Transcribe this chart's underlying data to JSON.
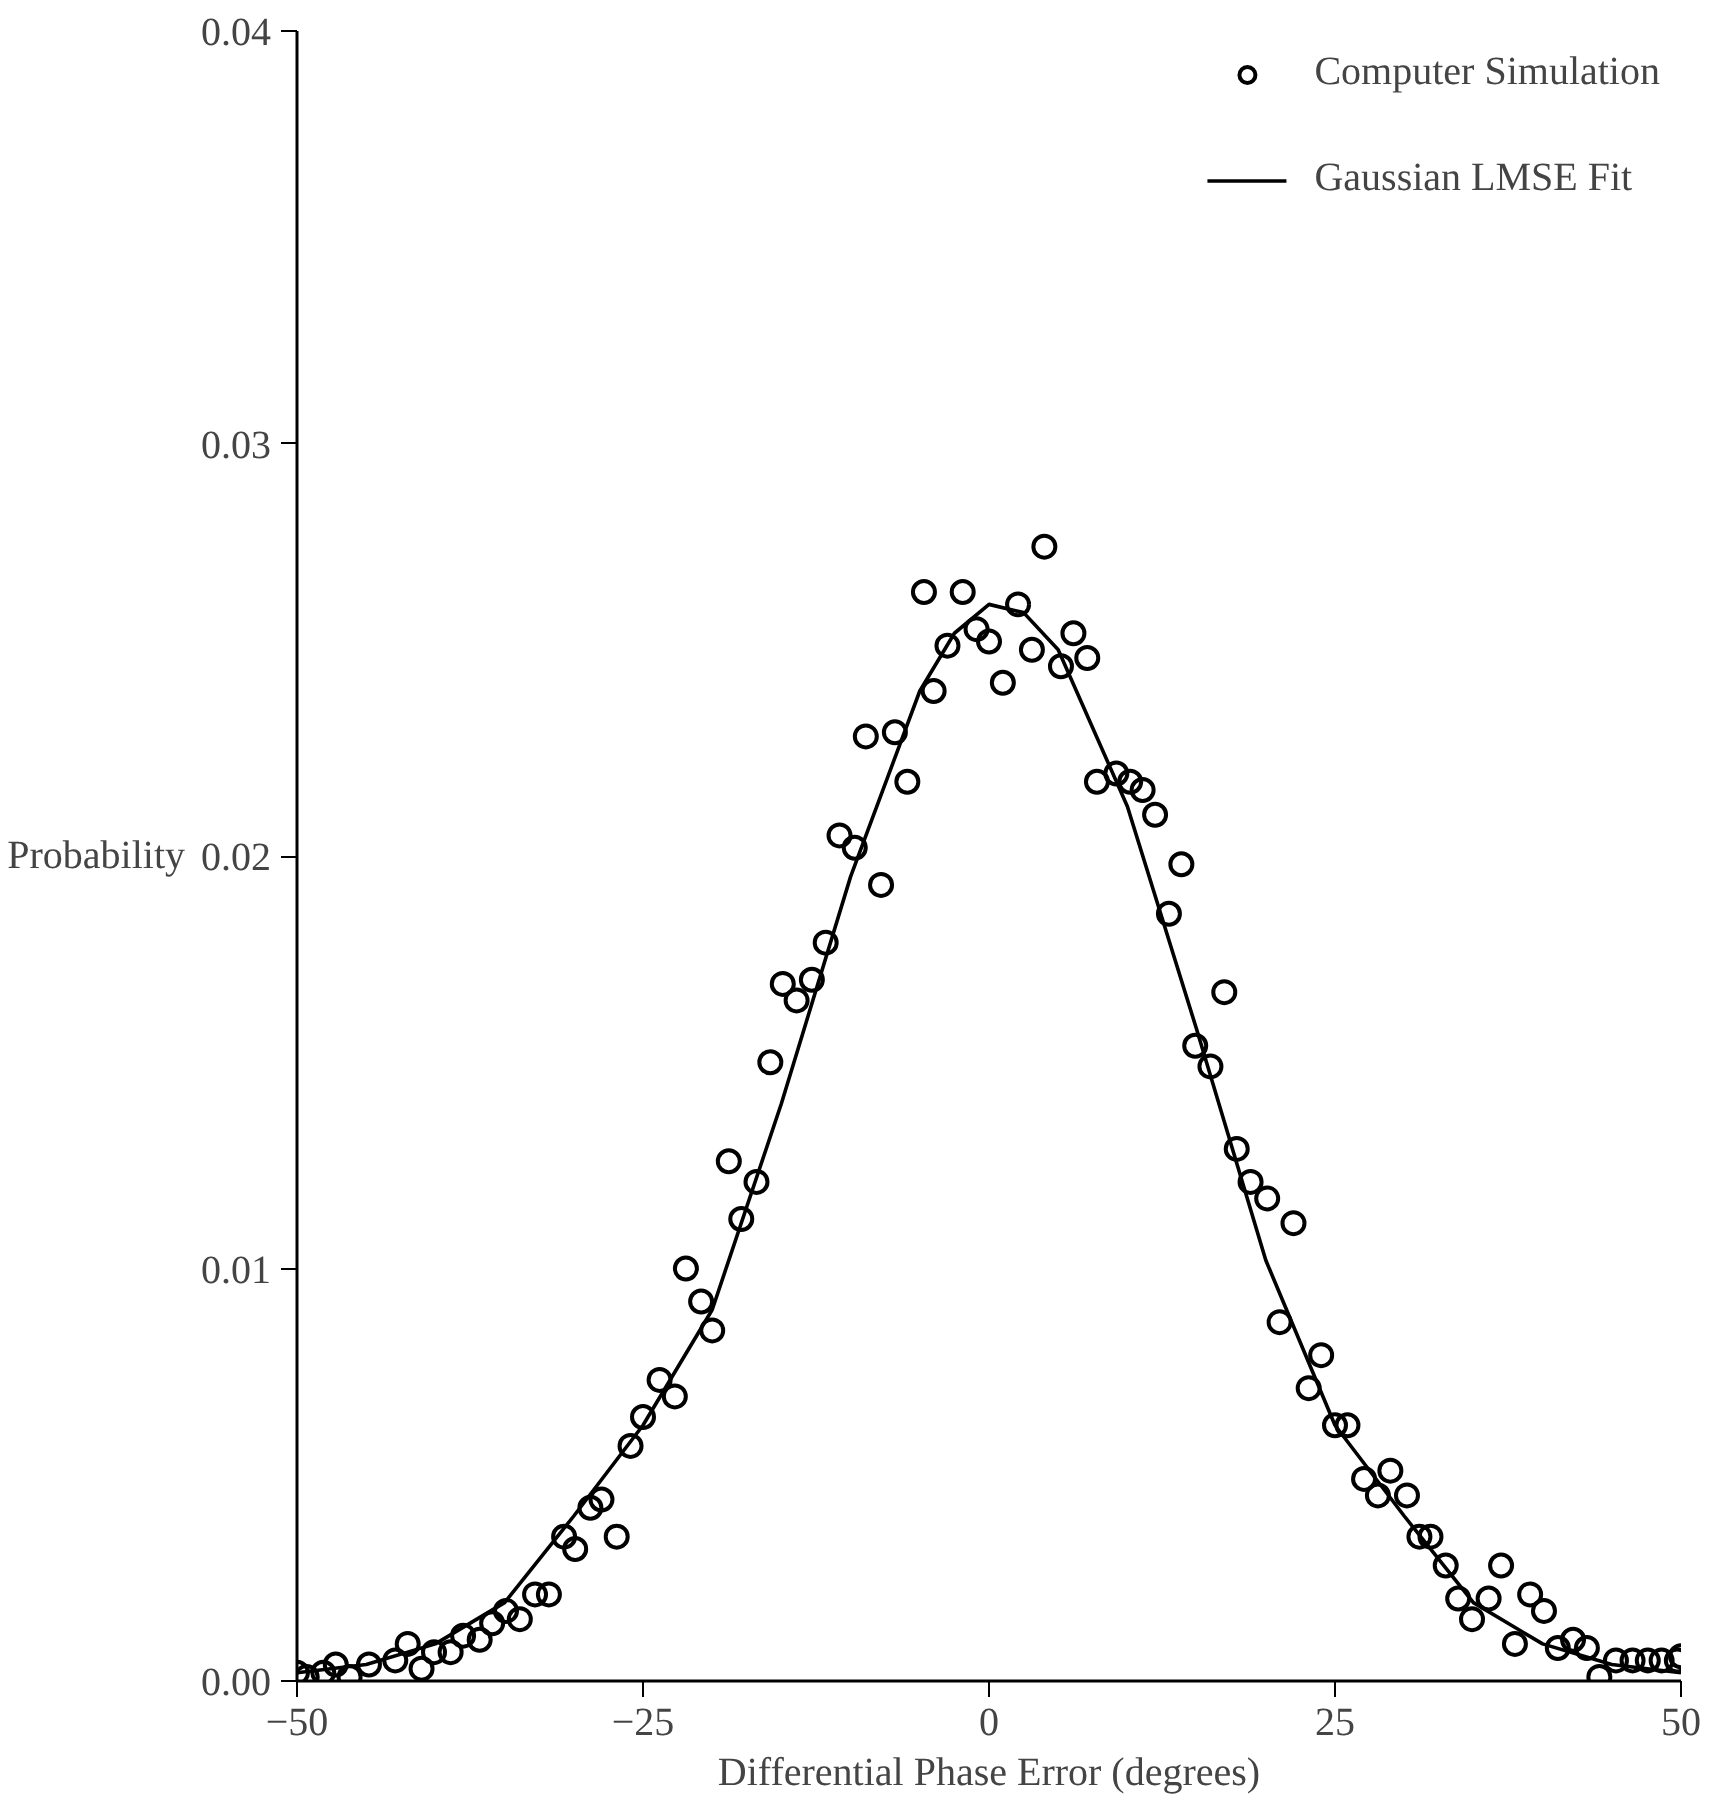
{
  "chart_data": {
    "type": "scatter",
    "xlabel": "Differential Phase Error (degrees)",
    "ylabel": "Probability",
    "xlim": [
      -50,
      50
    ],
    "xticks": [
      -50,
      -25,
      0,
      25,
      50
    ],
    "ylim": [
      0,
      0.04
    ],
    "yticks": [
      {
        "value": 0,
        "label": "0.00"
      },
      {
        "value": 0.01,
        "label": "0.01"
      },
      {
        "value": 0.02,
        "label": "0.02"
      },
      {
        "value": 0.03,
        "label": "0.03"
      },
      {
        "value": 0.04,
        "label": "0.04"
      }
    ],
    "grid": false,
    "legend": "top right",
    "series": [
      {
        "name": "Computer Simulation",
        "marker": "circle",
        "color": "#000000",
        "x": [
          -50,
          -49.3,
          -48.1,
          -47.2,
          -46.2,
          -44.8,
          -42.9,
          -42.0,
          -41.0,
          -40.1,
          -38.9,
          -38.0,
          -36.8,
          -35.9,
          -34.9,
          -33.9,
          -32.8,
          -31.8,
          -30.7,
          -29.9,
          -28.8,
          -28.0,
          -26.9,
          -25.9,
          -25.0,
          -23.8,
          -22.7,
          -21.9,
          -20.8,
          -20.0,
          -18.8,
          -17.9,
          -16.8,
          -15.8,
          -14.9,
          -13.9,
          -12.8,
          -11.8,
          -10.8,
          -9.7,
          -8.9,
          -7.8,
          -6.8,
          -5.9,
          -4.7,
          -4.0,
          -3.0,
          -1.9,
          -0.9,
          0.0,
          1.0,
          2.1,
          3.1,
          4.0,
          5.2,
          6.1,
          7.1,
          7.8,
          9.2,
          10.2,
          11.1,
          12.0,
          13.0,
          13.9,
          14.9,
          16.0,
          17.0,
          17.9,
          18.9,
          20.1,
          21.0,
          22.0,
          23.1,
          24.0,
          25.0,
          25.9,
          27.1,
          28.1,
          29.0,
          30.2,
          31.1,
          31.9,
          33.0,
          33.9,
          34.9,
          36.1,
          37.0,
          38.0,
          39.1,
          40.1,
          41.1,
          42.2,
          43.2,
          44.1,
          45.3,
          46.5,
          47.6,
          48.6,
          49.7,
          50.0
        ],
        "values": [
          0.0002,
          0.0001,
          0.0002,
          0.0004,
          0.0001,
          0.0004,
          0.0005,
          0.0009,
          0.0003,
          0.0007,
          0.0007,
          0.0011,
          0.001,
          0.0014,
          0.0017,
          0.0015,
          0.0021,
          0.0021,
          0.0035,
          0.0032,
          0.0042,
          0.0044,
          0.0035,
          0.0057,
          0.0064,
          0.0073,
          0.0069,
          0.01,
          0.0092,
          0.0085,
          0.0126,
          0.0112,
          0.0121,
          0.015,
          0.0169,
          0.0165,
          0.017,
          0.0179,
          0.0205,
          0.0202,
          0.0229,
          0.0193,
          0.023,
          0.0218,
          0.0264,
          0.024,
          0.0251,
          0.0264,
          0.0255,
          0.0252,
          0.0242,
          0.0261,
          0.025,
          0.0275,
          0.0246,
          0.0254,
          0.0248,
          0.0218,
          0.022,
          0.0218,
          0.0216,
          0.021,
          0.0186,
          0.0198,
          0.0154,
          0.0149,
          0.0167,
          0.0129,
          0.0121,
          0.0117,
          0.0087,
          0.0111,
          0.0071,
          0.0079,
          0.0062,
          0.0062,
          0.0049,
          0.0045,
          0.0051,
          0.0045,
          0.0035,
          0.0035,
          0.0028,
          0.002,
          0.0015,
          0.002,
          0.0028,
          0.0009,
          0.0021,
          0.0017,
          0.0008,
          0.001,
          0.0008,
          0.0001,
          0.0005,
          0.0005,
          0.0005,
          0.0005,
          0.0005,
          0.0006
        ]
      },
      {
        "name": "Gaussian LMSE Fit",
        "type": "line",
        "line_style": "solid",
        "color": "#000000",
        "x": [
          -50,
          -45,
          -40,
          -35,
          -30,
          -25,
          -20,
          -15,
          -10,
          -5,
          -2.5,
          0,
          2.5,
          5,
          10,
          15,
          20,
          25,
          30,
          35,
          40,
          45,
          50
        ],
        "values": [
          0.0002,
          0.0004,
          0.0009,
          0.0019,
          0.004,
          0.0062,
          0.009,
          0.014,
          0.0195,
          0.024,
          0.0254,
          0.0261,
          0.0259,
          0.025,
          0.0212,
          0.0158,
          0.0102,
          0.0062,
          0.004,
          0.0019,
          0.0009,
          0.0004,
          0.0002
        ]
      }
    ]
  }
}
